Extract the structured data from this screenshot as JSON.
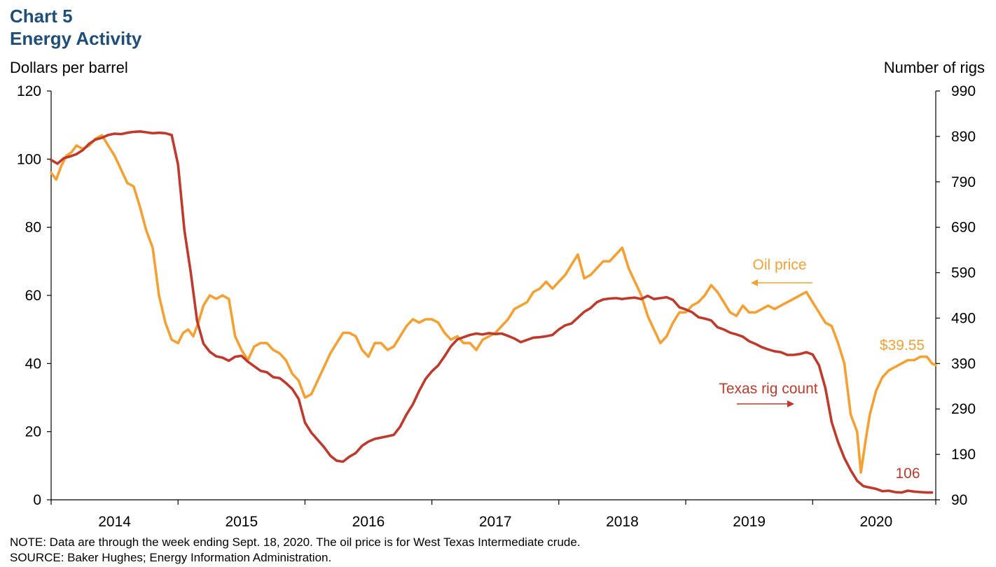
{
  "title_line1": "Chart 5",
  "title_line2": "Energy Activity",
  "notes": {
    "note": "NOTE: Data are through the week ending Sept. 18, 2020. The oil price is for West Texas Intermediate crude.",
    "source": "SOURCE: Baker Hughes; Energy Information Administration."
  },
  "colors": {
    "oil": "#F5A030",
    "rigs": "#C0392B",
    "title": "#1F4E79"
  },
  "chart_data": {
    "type": "line",
    "title": "Energy Activity",
    "x_unit": "year (decimal)",
    "x_ticks": [
      "2014",
      "2015",
      "2016",
      "2017",
      "2018",
      "2019",
      "2020"
    ],
    "xlim": [
      2014.0,
      2020.97
    ],
    "ylabel_left": "Dollars per barrel",
    "ylim_left": [
      0,
      120
    ],
    "yticks_left": [
      "0",
      "20",
      "40",
      "60",
      "80",
      "100",
      "120"
    ],
    "ylabel_right": "Number of rigs",
    "ylim_right": [
      90,
      990
    ],
    "yticks_right": [
      "90",
      "190",
      "290",
      "390",
      "490",
      "590",
      "690",
      "790",
      "890",
      "990"
    ],
    "grid": false,
    "annotations": {
      "oil_label": "Oil price",
      "rig_label": "Texas rig count",
      "oil_last": "$39.55",
      "rig_last": "106"
    },
    "series": [
      {
        "name": "Oil price",
        "axis": "left",
        "color": "#F5A030",
        "x": [
          2014.0,
          2014.04,
          2014.08,
          2014.12,
          2014.16,
          2014.2,
          2014.25,
          2014.3,
          2014.35,
          2014.4,
          2014.45,
          2014.5,
          2014.55,
          2014.6,
          2014.65,
          2014.7,
          2014.75,
          2014.8,
          2014.85,
          2014.9,
          2014.95,
          2015.0,
          2015.04,
          2015.08,
          2015.12,
          2015.16,
          2015.2,
          2015.25,
          2015.3,
          2015.35,
          2015.4,
          2015.45,
          2015.5,
          2015.55,
          2015.6,
          2015.65,
          2015.7,
          2015.75,
          2015.8,
          2015.85,
          2015.9,
          2015.95,
          2016.0,
          2016.05,
          2016.1,
          2016.15,
          2016.2,
          2016.25,
          2016.3,
          2016.35,
          2016.4,
          2016.45,
          2016.5,
          2016.55,
          2016.6,
          2016.65,
          2016.7,
          2016.75,
          2016.8,
          2016.85,
          2016.9,
          2016.95,
          2017.0,
          2017.05,
          2017.1,
          2017.15,
          2017.2,
          2017.25,
          2017.3,
          2017.35,
          2017.4,
          2017.45,
          2017.5,
          2017.55,
          2017.6,
          2017.65,
          2017.7,
          2017.75,
          2017.8,
          2017.85,
          2017.9,
          2017.95,
          2018.0,
          2018.05,
          2018.1,
          2018.15,
          2018.2,
          2018.25,
          2018.3,
          2018.35,
          2018.4,
          2018.45,
          2018.5,
          2018.55,
          2018.6,
          2018.65,
          2018.7,
          2018.75,
          2018.8,
          2018.85,
          2018.9,
          2018.95,
          2019.0,
          2019.05,
          2019.1,
          2019.15,
          2019.2,
          2019.25,
          2019.3,
          2019.35,
          2019.4,
          2019.45,
          2019.5,
          2019.55,
          2019.6,
          2019.65,
          2019.7,
          2019.75,
          2019.8,
          2019.85,
          2019.9,
          2019.95,
          2020.0,
          2020.05,
          2020.1,
          2020.15,
          2020.2,
          2020.25,
          2020.3,
          2020.35,
          2020.38,
          2020.42,
          2020.45,
          2020.5,
          2020.55,
          2020.6,
          2020.65,
          2020.7,
          2020.75,
          2020.8,
          2020.85,
          2020.9,
          2020.94,
          2020.97
        ],
        "values": [
          96,
          94,
          98,
          101,
          102,
          104,
          103,
          104,
          106,
          107,
          104,
          101,
          97,
          93,
          92,
          86,
          79,
          74,
          60,
          52,
          47,
          46,
          49,
          50,
          48,
          52,
          57,
          60,
          59,
          60,
          59,
          48,
          44,
          41,
          45,
          46,
          46,
          44,
          43,
          41,
          37,
          35,
          30,
          31,
          35,
          39,
          43,
          46,
          49,
          49,
          48,
          44,
          42,
          46,
          46,
          44,
          45,
          48,
          51,
          53,
          52,
          53,
          53,
          52,
          49,
          47,
          48,
          46,
          46,
          44,
          47,
          48,
          49,
          51,
          53,
          56,
          57,
          58,
          61,
          62,
          64,
          62,
          64,
          66,
          69,
          72,
          65,
          66,
          68,
          70,
          70,
          72,
          74,
          68,
          64,
          60,
          54,
          50,
          46,
          48,
          52,
          55,
          55,
          57,
          58,
          60,
          63,
          61,
          58,
          55,
          54,
          57,
          55,
          55,
          56,
          57,
          56,
          57,
          58,
          59,
          60,
          61,
          58,
          55,
          52,
          51,
          46,
          40,
          25,
          20,
          8,
          18,
          25,
          32,
          36,
          38,
          39,
          40,
          41,
          41,
          42,
          42,
          40,
          39.55
        ]
      },
      {
        "name": "Texas rig count",
        "axis": "right",
        "color": "#C0392B",
        "x": [
          2014.0,
          2014.05,
          2014.1,
          2014.15,
          2014.2,
          2014.25,
          2014.3,
          2014.35,
          2014.4,
          2014.45,
          2014.5,
          2014.55,
          2014.6,
          2014.65,
          2014.7,
          2014.75,
          2014.8,
          2014.85,
          2014.9,
          2014.95,
          2015.0,
          2015.05,
          2015.1,
          2015.15,
          2015.2,
          2015.25,
          2015.3,
          2015.35,
          2015.4,
          2015.45,
          2015.5,
          2015.55,
          2015.6,
          2015.65,
          2015.7,
          2015.75,
          2015.8,
          2015.85,
          2015.9,
          2015.95,
          2016.0,
          2016.05,
          2016.1,
          2016.15,
          2016.2,
          2016.25,
          2016.3,
          2016.35,
          2016.4,
          2016.45,
          2016.5,
          2016.55,
          2016.6,
          2016.65,
          2016.7,
          2016.75,
          2016.8,
          2016.85,
          2016.9,
          2016.95,
          2017.0,
          2017.05,
          2017.1,
          2017.15,
          2017.2,
          2017.25,
          2017.3,
          2017.35,
          2017.4,
          2017.45,
          2017.5,
          2017.55,
          2017.6,
          2017.65,
          2017.7,
          2017.75,
          2017.8,
          2017.85,
          2017.9,
          2017.95,
          2018.0,
          2018.05,
          2018.1,
          2018.15,
          2018.2,
          2018.25,
          2018.3,
          2018.35,
          2018.4,
          2018.45,
          2018.5,
          2018.55,
          2018.6,
          2018.65,
          2018.7,
          2018.75,
          2018.8,
          2018.85,
          2018.9,
          2018.95,
          2019.0,
          2019.05,
          2019.1,
          2019.15,
          2019.2,
          2019.25,
          2019.3,
          2019.35,
          2019.4,
          2019.45,
          2019.5,
          2019.55,
          2019.6,
          2019.65,
          2019.7,
          2019.75,
          2019.8,
          2019.85,
          2019.9,
          2019.95,
          2020.0,
          2020.05,
          2020.1,
          2020.15,
          2020.2,
          2020.25,
          2020.3,
          2020.35,
          2020.4,
          2020.45,
          2020.5,
          2020.55,
          2020.6,
          2020.65,
          2020.7,
          2020.75,
          2020.8,
          2020.85,
          2020.9,
          2020.94
        ],
        "values": [
          838,
          830,
          842,
          846,
          851,
          860,
          874,
          883,
          887,
          893,
          896,
          895,
          898,
          900,
          901,
          899,
          897,
          898,
          897,
          893,
          828,
          683,
          591,
          484,
          434,
          416,
          406,
          403,
          396,
          405,
          407,
          394,
          384,
          374,
          371,
          360,
          358,
          347,
          334,
          312,
          260,
          238,
          222,
          206,
          187,
          176,
          174,
          185,
          193,
          209,
          218,
          224,
          227,
          230,
          233,
          251,
          278,
          300,
          330,
          356,
          373,
          386,
          406,
          428,
          443,
          448,
          453,
          456,
          454,
          457,
          455,
          456,
          451,
          445,
          437,
          442,
          447,
          448,
          450,
          453,
          465,
          474,
          478,
          491,
          504,
          512,
          525,
          531,
          533,
          534,
          532,
          534,
          535,
          532,
          539,
          532,
          534,
          536,
          530,
          514,
          509,
          503,
          492,
          489,
          485,
          470,
          465,
          458,
          454,
          449,
          439,
          433,
          426,
          421,
          417,
          415,
          409,
          409,
          411,
          415,
          410,
          386,
          336,
          261,
          217,
          182,
          155,
          132,
          120,
          117,
          114,
          109,
          110,
          107,
          106,
          110,
          108,
          107,
          106,
          106
        ]
      }
    ]
  }
}
